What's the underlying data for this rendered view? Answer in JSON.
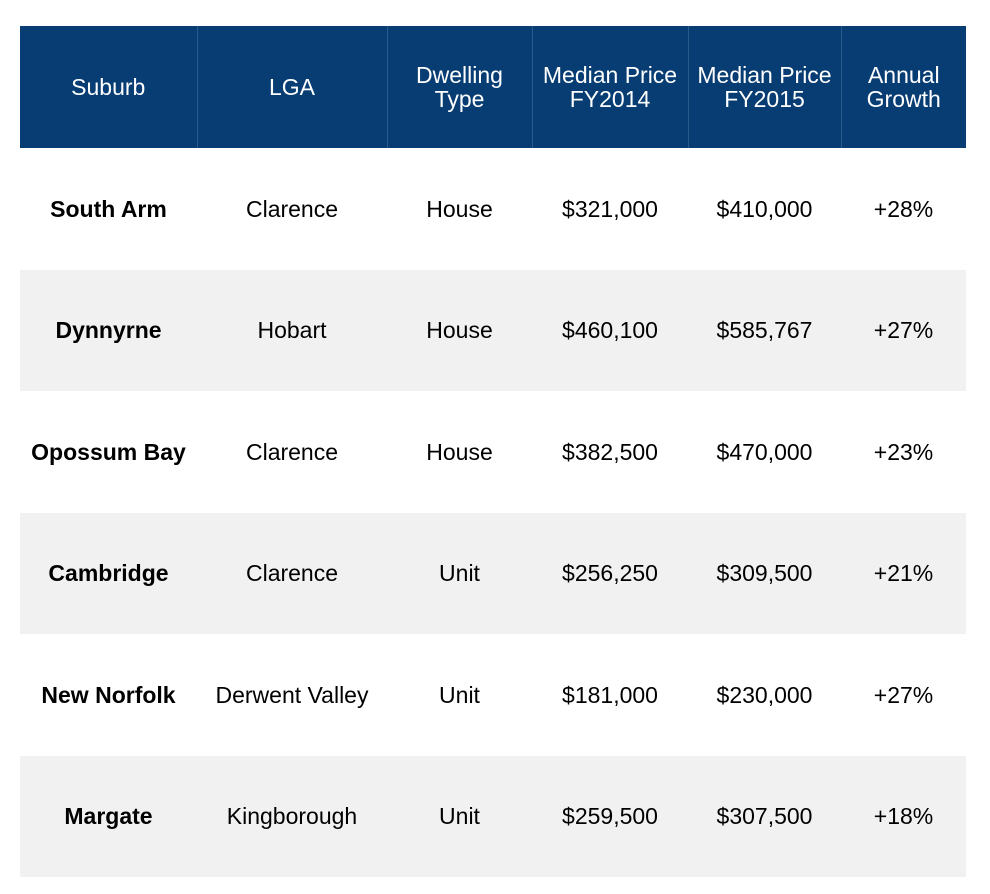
{
  "table": {
    "headers": [
      "Suburb",
      "LGA",
      "Dwelling Type",
      "Median Price FY2014",
      "Median Price FY2015",
      "Annual Growth"
    ],
    "rows": [
      [
        "South Arm",
        "Clarence",
        "House",
        "$321,000",
        "$410,000",
        "+28%"
      ],
      [
        "Dynnyrne",
        "Hobart",
        "House",
        "$460,100",
        "$585,767",
        "+27%"
      ],
      [
        "Opossum Bay",
        "Clarence",
        "House",
        "$382,500",
        "$470,000",
        "+23%"
      ],
      [
        "Cambridge",
        "Clarence",
        "Unit",
        "$256,250",
        "$309,500",
        "+21%"
      ],
      [
        "New Norfolk",
        "Derwent Valley",
        "Unit",
        "$181,000",
        "$230,000",
        "+27%"
      ],
      [
        "Margate",
        "Kingborough",
        "Unit",
        "$259,500",
        "$307,500",
        "+18%"
      ]
    ]
  },
  "colors": {
    "header_background": "#073d73",
    "header_text": "#ffffff",
    "row_alt_background": "#f1f1f1"
  }
}
